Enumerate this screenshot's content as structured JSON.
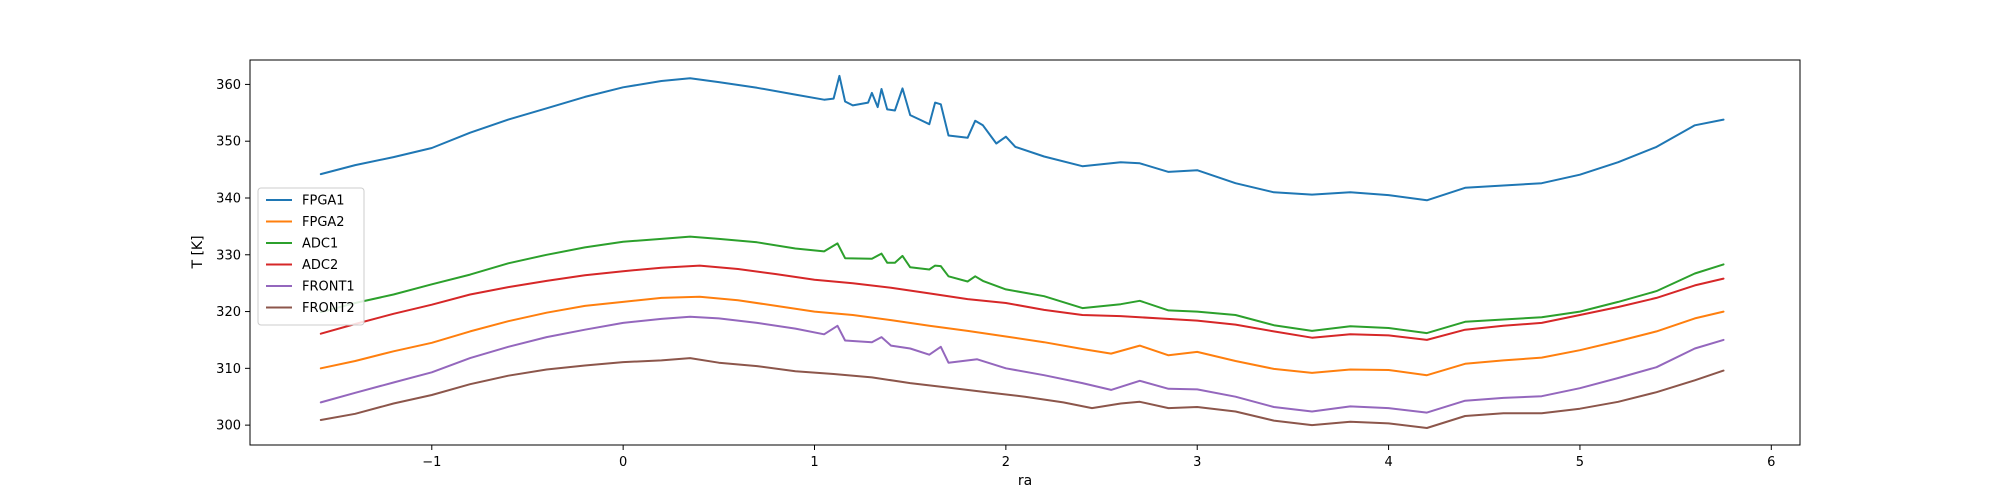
{
  "chart_data": {
    "type": "line",
    "title": "",
    "xlabel": "ra",
    "ylabel": "T [K]",
    "xlim": [
      -1.95,
      6.15
    ],
    "ylim": [
      296.5,
      364.3
    ],
    "xticks": [
      -1,
      0,
      1,
      2,
      3,
      4,
      5,
      6
    ],
    "xtick_labels": [
      "−1",
      "0",
      "1",
      "2",
      "3",
      "4",
      "5",
      "6"
    ],
    "yticks": [
      300,
      310,
      320,
      330,
      340,
      350,
      360
    ],
    "ytick_labels": [
      "300",
      "310",
      "320",
      "330",
      "340",
      "350",
      "360"
    ],
    "grid": false,
    "legend_position": "center-left",
    "series": [
      {
        "name": "FPGA1",
        "color": "#1f77b4",
        "x": [
          -1.58,
          -1.4,
          -1.2,
          -1.0,
          -0.8,
          -0.6,
          -0.4,
          -0.2,
          0.0,
          0.2,
          0.35,
          0.5,
          0.7,
          0.9,
          1.05,
          1.1,
          1.13,
          1.16,
          1.2,
          1.28,
          1.3,
          1.33,
          1.35,
          1.38,
          1.42,
          1.46,
          1.5,
          1.55,
          1.6,
          1.63,
          1.66,
          1.7,
          1.8,
          1.84,
          1.88,
          1.95,
          2.0,
          2.05,
          2.2,
          2.4,
          2.6,
          2.7,
          2.85,
          3.0,
          3.2,
          3.4,
          3.6,
          3.8,
          4.0,
          4.2,
          4.4,
          4.6,
          4.8,
          5.0,
          5.2,
          5.4,
          5.6,
          5.75
        ],
        "y": [
          344.2,
          345.8,
          347.2,
          348.8,
          351.5,
          353.8,
          355.8,
          357.8,
          359.5,
          360.6,
          361.1,
          360.4,
          359.4,
          358.2,
          357.3,
          357.5,
          361.5,
          357.0,
          356.3,
          356.8,
          358.5,
          356.0,
          359.2,
          355.6,
          355.4,
          359.3,
          354.6,
          353.8,
          353.0,
          356.8,
          356.5,
          351.0,
          350.6,
          353.6,
          352.8,
          349.6,
          350.8,
          349.0,
          347.3,
          345.6,
          346.3,
          346.1,
          344.6,
          344.9,
          342.6,
          341.0,
          340.6,
          341.0,
          340.5,
          339.6,
          341.8,
          342.2,
          342.6,
          344.1,
          346.3,
          349.0,
          352.8,
          353.8
        ]
      },
      {
        "name": "FPGA2",
        "color": "#ff7f0e",
        "x": [
          -1.58,
          -1.4,
          -1.2,
          -1.0,
          -0.8,
          -0.6,
          -0.4,
          -0.2,
          0.0,
          0.2,
          0.4,
          0.6,
          0.8,
          1.0,
          1.2,
          1.4,
          1.6,
          1.8,
          2.0,
          2.2,
          2.4,
          2.55,
          2.7,
          2.85,
          3.0,
          3.2,
          3.4,
          3.6,
          3.8,
          4.0,
          4.2,
          4.4,
          4.6,
          4.8,
          5.0,
          5.2,
          5.4,
          5.6,
          5.75
        ],
        "y": [
          310.0,
          311.3,
          313.0,
          314.5,
          316.5,
          318.3,
          319.8,
          321.0,
          321.7,
          322.4,
          322.6,
          322.0,
          321.0,
          320.0,
          319.4,
          318.5,
          317.5,
          316.6,
          315.6,
          314.6,
          313.4,
          312.6,
          314.0,
          312.3,
          312.9,
          311.3,
          309.9,
          309.2,
          309.8,
          309.7,
          308.8,
          310.8,
          311.4,
          311.9,
          313.2,
          314.8,
          316.5,
          318.8,
          320.0
        ]
      },
      {
        "name": "ADC1",
        "color": "#2ca02c",
        "x": [
          -1.58,
          -1.4,
          -1.2,
          -1.0,
          -0.8,
          -0.6,
          -0.4,
          -0.2,
          0.0,
          0.2,
          0.35,
          0.5,
          0.7,
          0.9,
          1.05,
          1.12,
          1.16,
          1.3,
          1.35,
          1.38,
          1.42,
          1.46,
          1.5,
          1.6,
          1.63,
          1.66,
          1.7,
          1.8,
          1.84,
          1.88,
          2.0,
          2.2,
          2.4,
          2.6,
          2.7,
          2.85,
          3.0,
          3.2,
          3.4,
          3.6,
          3.8,
          4.0,
          4.2,
          4.4,
          4.6,
          4.8,
          5.0,
          5.2,
          5.4,
          5.6,
          5.75
        ],
        "y": [
          319.9,
          321.5,
          323.0,
          324.8,
          326.5,
          328.5,
          330.0,
          331.3,
          332.3,
          332.8,
          333.2,
          332.8,
          332.2,
          331.1,
          330.6,
          332.0,
          329.4,
          329.3,
          330.2,
          328.6,
          328.6,
          329.8,
          327.8,
          327.4,
          328.1,
          328.0,
          326.2,
          325.3,
          326.2,
          325.4,
          323.9,
          322.7,
          320.6,
          321.3,
          321.9,
          320.2,
          320.0,
          319.4,
          317.6,
          316.6,
          317.4,
          317.1,
          316.2,
          318.2,
          318.6,
          319.0,
          320.0,
          321.7,
          323.6,
          326.7,
          328.3
        ]
      },
      {
        "name": "ADC2",
        "color": "#d62728",
        "x": [
          -1.58,
          -1.4,
          -1.2,
          -1.0,
          -0.8,
          -0.6,
          -0.4,
          -0.2,
          0.0,
          0.2,
          0.4,
          0.6,
          0.8,
          1.0,
          1.2,
          1.4,
          1.6,
          1.8,
          2.0,
          2.2,
          2.4,
          2.6,
          2.8,
          3.0,
          3.2,
          3.4,
          3.6,
          3.8,
          4.0,
          4.2,
          4.4,
          4.6,
          4.8,
          5.0,
          5.2,
          5.4,
          5.6,
          5.75
        ],
        "y": [
          316.1,
          317.8,
          319.6,
          321.2,
          323.0,
          324.3,
          325.4,
          326.4,
          327.1,
          327.7,
          328.1,
          327.5,
          326.6,
          325.6,
          325.0,
          324.2,
          323.2,
          322.2,
          321.5,
          320.3,
          319.4,
          319.2,
          318.8,
          318.4,
          317.7,
          316.5,
          315.4,
          316.0,
          315.8,
          315.0,
          316.8,
          317.5,
          318.0,
          319.4,
          320.8,
          322.4,
          324.6,
          325.8
        ]
      },
      {
        "name": "FRONT1",
        "color": "#9467bd",
        "x": [
          -1.58,
          -1.4,
          -1.2,
          -1.0,
          -0.8,
          -0.6,
          -0.4,
          -0.2,
          0.0,
          0.2,
          0.35,
          0.5,
          0.7,
          0.9,
          1.05,
          1.12,
          1.16,
          1.3,
          1.35,
          1.4,
          1.5,
          1.6,
          1.66,
          1.7,
          1.85,
          2.0,
          2.2,
          2.4,
          2.55,
          2.7,
          2.85,
          3.0,
          3.2,
          3.4,
          3.6,
          3.8,
          4.0,
          4.2,
          4.4,
          4.6,
          4.8,
          5.0,
          5.2,
          5.4,
          5.6,
          5.75
        ],
        "y": [
          304.0,
          305.7,
          307.5,
          309.3,
          311.8,
          313.8,
          315.5,
          316.8,
          318.0,
          318.7,
          319.1,
          318.8,
          318.0,
          317.0,
          316.0,
          317.5,
          314.9,
          314.6,
          315.5,
          314.0,
          313.5,
          312.4,
          313.8,
          311.0,
          311.6,
          310.0,
          308.8,
          307.4,
          306.2,
          307.8,
          306.4,
          306.3,
          305.0,
          303.2,
          302.4,
          303.3,
          303.0,
          302.2,
          304.3,
          304.8,
          305.1,
          306.5,
          308.3,
          310.2,
          313.5,
          315.0
        ]
      },
      {
        "name": "FRONT2",
        "color": "#8c564b",
        "x": [
          -1.58,
          -1.4,
          -1.2,
          -1.0,
          -0.8,
          -0.6,
          -0.4,
          -0.2,
          0.0,
          0.2,
          0.35,
          0.5,
          0.7,
          0.9,
          1.1,
          1.3,
          1.5,
          1.7,
          1.9,
          2.1,
          2.3,
          2.45,
          2.6,
          2.7,
          2.85,
          3.0,
          3.2,
          3.4,
          3.6,
          3.8,
          4.0,
          4.2,
          4.4,
          4.6,
          4.8,
          5.0,
          5.2,
          5.4,
          5.6,
          5.75
        ],
        "y": [
          300.9,
          302.0,
          303.8,
          305.3,
          307.2,
          308.7,
          309.8,
          310.5,
          311.1,
          311.4,
          311.8,
          311.0,
          310.4,
          309.5,
          309.0,
          308.4,
          307.4,
          306.6,
          305.8,
          305.0,
          304.0,
          303.0,
          303.8,
          304.1,
          303.0,
          303.2,
          302.4,
          300.8,
          300.0,
          300.6,
          300.3,
          299.5,
          301.6,
          302.1,
          302.1,
          302.9,
          304.1,
          305.8,
          307.9,
          309.6
        ]
      }
    ]
  }
}
